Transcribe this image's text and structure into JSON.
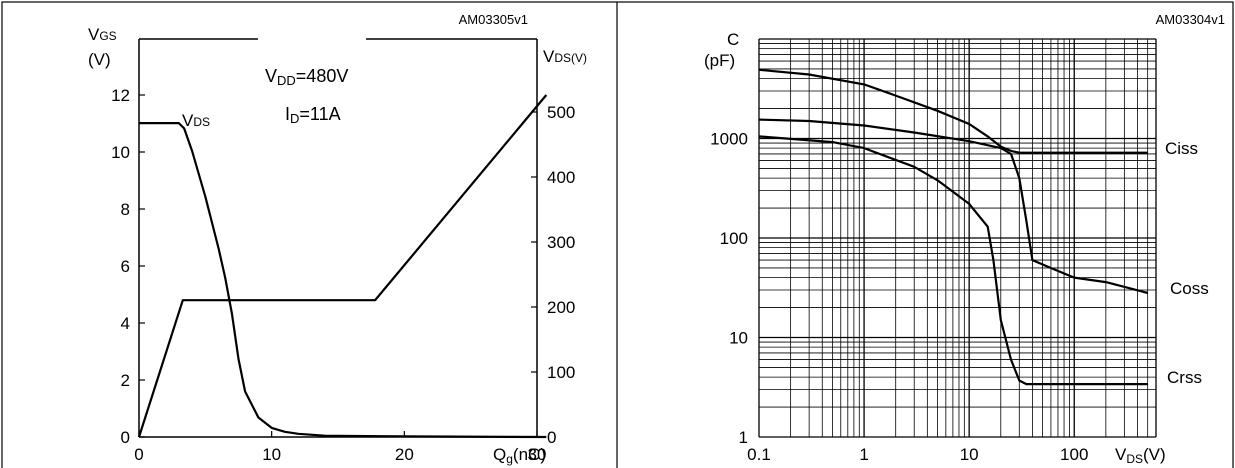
{
  "chart_data": [
    {
      "type": "line",
      "code": "AM03305v1",
      "ylabel": "VGS (V)",
      "ylabel_main": "V",
      "ylabel_sub": "GS",
      "ylabel_unit": "(V)",
      "y2label": "VDS(V)",
      "y2label_main": "V",
      "y2label_sub": "DS(V)",
      "xlabel": "Qg(nC)",
      "xlabel_main": "Q",
      "xlabel_sub": "g",
      "xlabel_unit": "(nC)",
      "xlim": [
        0,
        30
      ],
      "ylim": [
        0,
        12
      ],
      "y2lim": [
        0,
        500
      ],
      "xticks": [
        "0",
        "10",
        "20",
        "30"
      ],
      "yticks": [
        "0",
        "2",
        "4",
        "6",
        "8",
        "10",
        "12"
      ],
      "y2ticks": [
        "0",
        "100",
        "200",
        "300",
        "400",
        "500"
      ],
      "grid": false,
      "conditions": {
        "vdd_main": "V",
        "vdd_sub": "DD",
        "vdd_value": "=480V",
        "id_main": "I",
        "id_sub": "D",
        "id_value": "=11A"
      },
      "series": [
        {
          "name": "VGS",
          "axis": "left",
          "x": [
            0,
            3.3,
            17.8,
            30.7
          ],
          "y": [
            0,
            4.8,
            4.8,
            12
          ]
        },
        {
          "name": "VDS",
          "label_main": "V",
          "label_sub": "DS",
          "axis": "right",
          "x": [
            0,
            3.0,
            3.4,
            4.0,
            5.0,
            6.0,
            6.5,
            7.0,
            7.5,
            8.0,
            9.0,
            10.0,
            11.0,
            12.0,
            14.0,
            20.0,
            30.7
          ],
          "y": [
            483,
            483,
            475,
            440,
            370,
            290,
            245,
            190,
            120,
            70,
            30,
            14,
            8,
            5,
            2,
            1,
            0
          ]
        }
      ]
    },
    {
      "type": "line",
      "code": "AM03304v1",
      "ylabel": "C (pF)",
      "ylabel_main": "C",
      "ylabel_unit": "(pF)",
      "xlabel": "VDS(V)",
      "xlabel_main": "V",
      "xlabel_sub": "DS",
      "xlabel_unit": "(V)",
      "x_scale": "log",
      "y_scale": "log",
      "xlim": [
        0.1,
        600
      ],
      "ylim": [
        1,
        10000
      ],
      "xticks": [
        "0.1",
        "1",
        "10",
        "100"
      ],
      "yticks": [
        "1",
        "10",
        "100",
        "1000"
      ],
      "grid": true,
      "series": [
        {
          "name": "Ciss",
          "x": [
            0.1,
            0.3,
            1,
            2,
            5,
            10,
            15,
            20,
            25,
            30,
            50,
            100,
            200,
            500
          ],
          "y": [
            4900,
            4400,
            3500,
            2700,
            1900,
            1400,
            1050,
            830,
            750,
            720,
            720,
            720,
            720,
            720
          ]
        },
        {
          "name": "Coss",
          "x": [
            0.1,
            0.3,
            1,
            3,
            10,
            20,
            25,
            30,
            35,
            40,
            60,
            100,
            200,
            500
          ],
          "y": [
            1550,
            1500,
            1350,
            1150,
            940,
            800,
            700,
            400,
            150,
            60,
            50,
            40,
            36,
            28
          ]
        },
        {
          "name": "Crss",
          "x": [
            0.1,
            0.5,
            1,
            3,
            5,
            10,
            15,
            17,
            20,
            25,
            30,
            35,
            40,
            100,
            500
          ],
          "y": [
            1050,
            920,
            800,
            520,
            380,
            220,
            130,
            60,
            15,
            6,
            3.7,
            3.4,
            3.4,
            3.4,
            3.4
          ]
        }
      ]
    }
  ]
}
